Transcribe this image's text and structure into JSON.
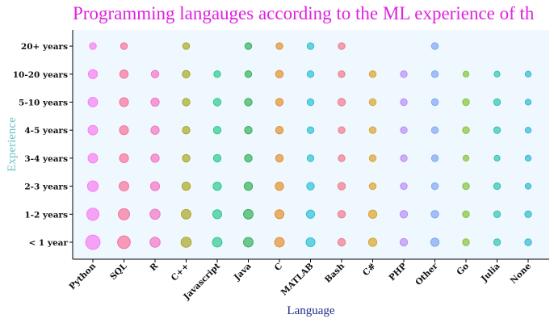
{
  "chart_data": {
    "type": "scatter",
    "title": "Programming langauges according to the ML experience of th",
    "xlabel": "Language",
    "ylabel": "Experience",
    "x_categories": [
      "Python",
      "SQL",
      "R",
      "C++",
      "Javascript",
      "Java",
      "C",
      "MATLAB",
      "Bash",
      "C#",
      "PHP",
      "Other",
      "Go",
      "Julia",
      "None"
    ],
    "y_categories": [
      "< 1 year",
      "1-2 years",
      "2-3 years",
      "3-4 years",
      "4-5 years",
      "5-10 years",
      "10-20 years",
      "20+ years"
    ],
    "colors": [
      "#f77ef2",
      "#f7729a",
      "#f274c4",
      "#a9a823",
      "#2ec98f",
      "#34b05a",
      "#e3902e",
      "#2ec0d6",
      "#f07a8a",
      "#d9a42c",
      "#b98ef5",
      "#7fa6f2",
      "#85c43a",
      "#30c4b3",
      "#33b9d1"
    ],
    "grid": false,
    "legend": "none",
    "values": [
      [
        18,
        14,
        9,
        9,
        8,
        8,
        8,
        7,
        5,
        6,
        5,
        6,
        4,
        4,
        4
      ],
      [
        13,
        11,
        9,
        8,
        7,
        8,
        7,
        6,
        5,
        6,
        5,
        5,
        4,
        4,
        4
      ],
      [
        10,
        8,
        7,
        6,
        6,
        6,
        6,
        5,
        5,
        4,
        4,
        4,
        4,
        4,
        3
      ],
      [
        8,
        7,
        6,
        5,
        5,
        5,
        5,
        4,
        4,
        4,
        4,
        4,
        3,
        3,
        3
      ],
      [
        8,
        7,
        6,
        5,
        5,
        5,
        5,
        4,
        4,
        4,
        4,
        4,
        4,
        4,
        3
      ],
      [
        8,
        7,
        6,
        5,
        5,
        5,
        5,
        4,
        5,
        4,
        4,
        4,
        4,
        4,
        3
      ],
      [
        7,
        6,
        5,
        5,
        4,
        4,
        5,
        4,
        4,
        4,
        4,
        4,
        3,
        3,
        3
      ],
      [
        4,
        4,
        0,
        4,
        0,
        4,
        4,
        4,
        4,
        0,
        0,
        4,
        0,
        0,
        0
      ]
    ]
  }
}
